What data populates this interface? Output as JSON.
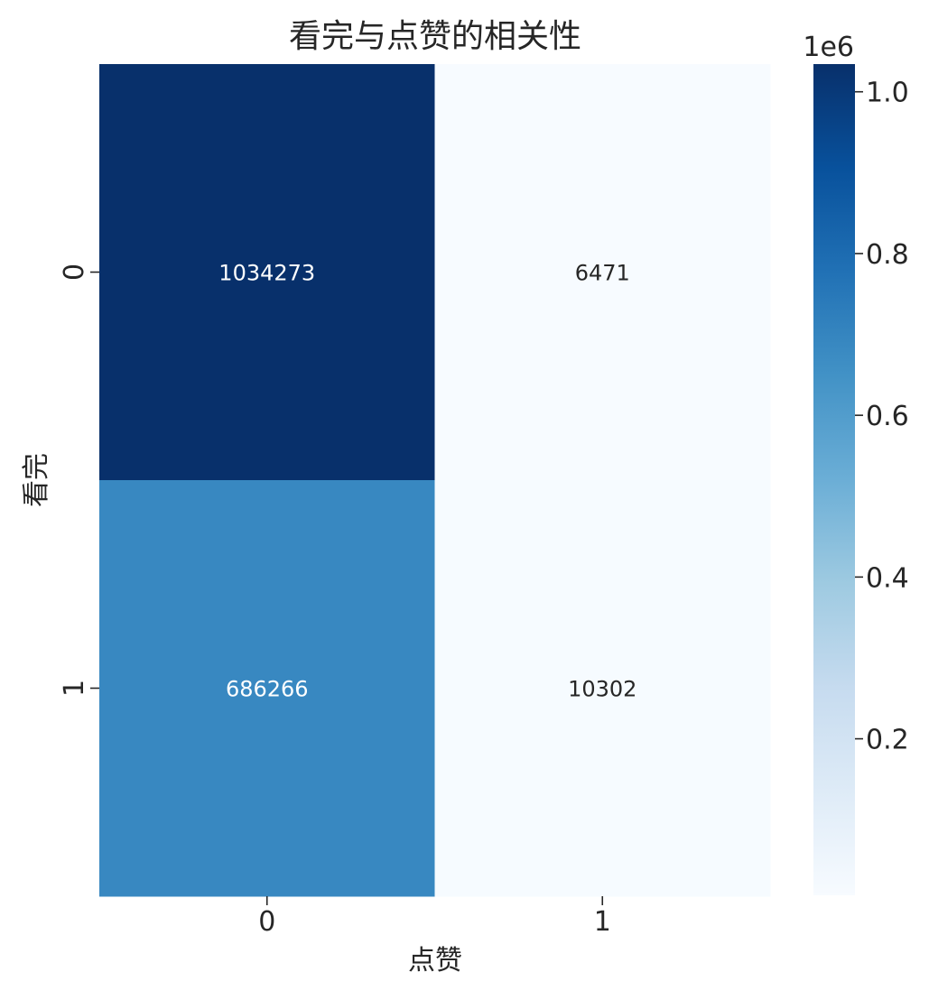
{
  "chart_data": {
    "type": "heatmap",
    "title": "看完与点赞的相关性",
    "xlabel": "点赞",
    "ylabel": "看完",
    "x_categories": [
      "0",
      "1"
    ],
    "y_categories": [
      "0",
      "1"
    ],
    "values": [
      [
        1034273,
        6471
      ],
      [
        686266,
        10302
      ]
    ],
    "colormap": "Blues",
    "colorbar": {
      "range": [
        6471,
        1034273
      ],
      "ticks": [
        0.2,
        0.4,
        0.6,
        0.8,
        1.0
      ],
      "tick_labels": [
        "0.2",
        "0.4",
        "0.6",
        "0.8",
        "1.0"
      ],
      "offset_label": "1e6",
      "placement": "right"
    },
    "grid": false
  }
}
